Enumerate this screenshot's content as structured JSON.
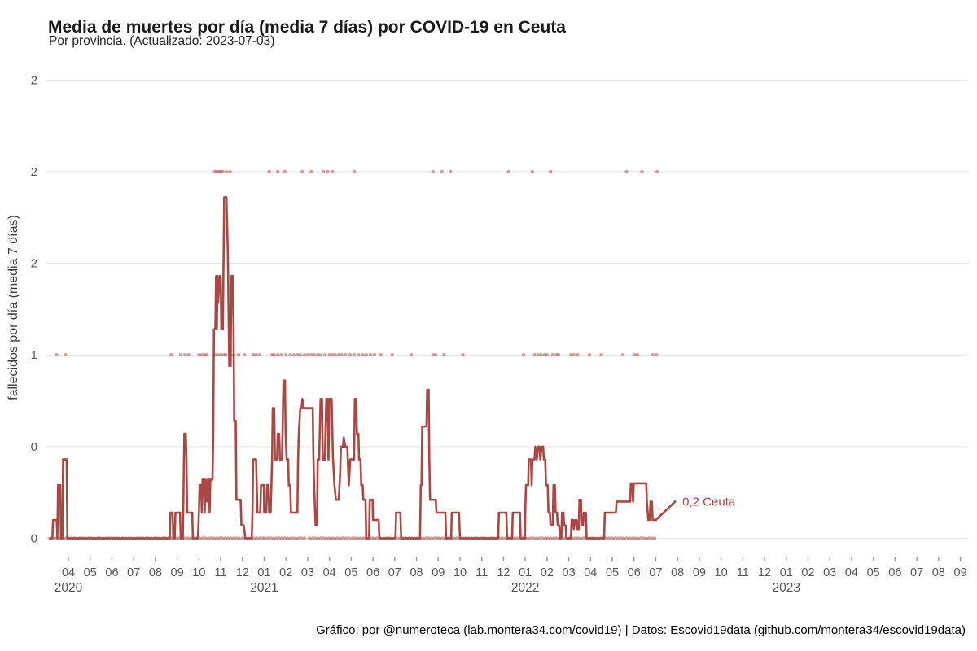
{
  "header": {
    "title": "Media de muertes por día (media 7 días) por COVID-19 en Ceuta",
    "subtitle": "Por provincia. (Actualizado: 2023-07-03)"
  },
  "footer": {
    "credit": "Gráfico: por @numeroteca (lab.montera34.com/covid19) | Datos: Escovid19data (github.com/montera34/escovid19data)"
  },
  "chart_data": {
    "type": "line",
    "title": "Media de muertes por día (media 7 días) por COVID-19 en Ceuta",
    "subtitle": "Por provincia. (Actualizado: 2023-07-03)",
    "ylabel": "fallecidos por día (media 7 días)",
    "xlabel": "",
    "grid_on": true,
    "line_color": "#a94743",
    "grid_color": "#e4e4e4",
    "tick_color": "#9a9a9a",
    "axis_text_color": "#565656",
    "ylim": [
      0,
      2.6
    ],
    "y_gridlines": {
      "values": [
        2.5,
        2.0,
        1.5,
        1.0,
        0.5,
        0
      ],
      "labels": [
        "2",
        "2",
        "2",
        "1",
        "0",
        "0"
      ]
    },
    "x_axis": {
      "first_tick_month": "2020-04",
      "month_tick_labels": [
        "04",
        "05",
        "06",
        "07",
        "08",
        "09",
        "10",
        "11",
        "12",
        "01",
        "02",
        "03",
        "04",
        "05",
        "06",
        "07",
        "08",
        "09",
        "10",
        "11",
        "12",
        "01",
        "02",
        "03",
        "04",
        "05",
        "06",
        "07",
        "08",
        "09",
        "10",
        "11",
        "12",
        "01",
        "02",
        "03",
        "04",
        "05",
        "06",
        "07",
        "08",
        "09"
      ],
      "year_labels": [
        {
          "label": "2020",
          "under_month": "2020-04"
        },
        {
          "label": "2021",
          "under_month": "2021-01"
        },
        {
          "label": "2022",
          "under_month": "2022-01"
        },
        {
          "label": "2023",
          "under_month": "2023-01"
        }
      ]
    },
    "series": {
      "name": "Ceuta",
      "end_label": "0,2 Ceuta",
      "points": [
        [
          "2020-03-05",
          0
        ],
        [
          "2020-03-09",
          0
        ],
        [
          "2020-03-10",
          0.1
        ],
        [
          "2020-03-15",
          0.1
        ],
        [
          "2020-03-16",
          0
        ],
        [
          "2020-03-17",
          0.29
        ],
        [
          "2020-03-20",
          0.29
        ],
        [
          "2020-03-21",
          0
        ],
        [
          "2020-03-23",
          0
        ],
        [
          "2020-03-24",
          0.43
        ],
        [
          "2020-03-29",
          0.43
        ],
        [
          "2020-03-30",
          0
        ],
        [
          "2020-08-21",
          0
        ],
        [
          "2020-08-22",
          0.14
        ],
        [
          "2020-08-25",
          0.14
        ],
        [
          "2020-08-26",
          0
        ],
        [
          "2020-08-28",
          0
        ],
        [
          "2020-08-29",
          0.14
        ],
        [
          "2020-09-05",
          0.14
        ],
        [
          "2020-09-06",
          0
        ],
        [
          "2020-09-09",
          0
        ],
        [
          "2020-09-10",
          0.29
        ],
        [
          "2020-09-11",
          0.57
        ],
        [
          "2020-09-13",
          0.57
        ],
        [
          "2020-09-14",
          0.43
        ],
        [
          "2020-09-15",
          0.14
        ],
        [
          "2020-09-22",
          0.14
        ],
        [
          "2020-09-23",
          0
        ],
        [
          "2020-09-30",
          0
        ],
        [
          "2020-10-01",
          0.14
        ],
        [
          "2020-10-02",
          0.29
        ],
        [
          "2020-10-04",
          0.29
        ],
        [
          "2020-10-05",
          0.14
        ],
        [
          "2020-10-06",
          0.32
        ],
        [
          "2020-10-08",
          0.32
        ],
        [
          "2020-10-09",
          0.14
        ],
        [
          "2020-10-10",
          0.32
        ],
        [
          "2020-10-12",
          0.2
        ],
        [
          "2020-10-13",
          0.32
        ],
        [
          "2020-10-15",
          0.32
        ],
        [
          "2020-10-16",
          0.14
        ],
        [
          "2020-10-17",
          0.32
        ],
        [
          "2020-10-20",
          0.32
        ],
        [
          "2020-10-21",
          0.57
        ],
        [
          "2020-10-22",
          1.14
        ],
        [
          "2020-10-24",
          1.14
        ],
        [
          "2020-10-25",
          1.43
        ],
        [
          "2020-10-26",
          1.14
        ],
        [
          "2020-10-27",
          1.43
        ],
        [
          "2020-10-28",
          1.29
        ],
        [
          "2020-10-30",
          1.43
        ],
        [
          "2020-11-01",
          1.43
        ],
        [
          "2020-11-02",
          1.14
        ],
        [
          "2020-11-04",
          1.14
        ],
        [
          "2020-11-06",
          1.86
        ],
        [
          "2020-11-09",
          1.86
        ],
        [
          "2020-11-10",
          1.71
        ],
        [
          "2020-11-11",
          1.57
        ],
        [
          "2020-11-13",
          0.94
        ],
        [
          "2020-11-15",
          0.94
        ],
        [
          "2020-11-16",
          1.43
        ],
        [
          "2020-11-18",
          1.43
        ],
        [
          "2020-11-19",
          1.14
        ],
        [
          "2020-11-20",
          0.64
        ],
        [
          "2020-11-22",
          0.64
        ],
        [
          "2020-11-23",
          0.21
        ],
        [
          "2020-11-29",
          0.21
        ],
        [
          "2020-11-30",
          0.07
        ],
        [
          "2020-12-03",
          0.07
        ],
        [
          "2020-12-05",
          0
        ],
        [
          "2020-12-14",
          0
        ],
        [
          "2020-12-15",
          0.14
        ],
        [
          "2020-12-16",
          0.43
        ],
        [
          "2020-12-20",
          0.43
        ],
        [
          "2020-12-21",
          0.29
        ],
        [
          "2020-12-22",
          0.14
        ],
        [
          "2020-12-26",
          0.14
        ],
        [
          "2020-12-27",
          0.29
        ],
        [
          "2020-12-31",
          0.29
        ],
        [
          "2021-01-01",
          0.14
        ],
        [
          "2021-01-04",
          0.14
        ],
        [
          "2021-01-05",
          0.29
        ],
        [
          "2021-01-07",
          0.29
        ],
        [
          "2021-01-08",
          0.14
        ],
        [
          "2021-01-10",
          0.14
        ],
        [
          "2021-01-12",
          0.43
        ],
        [
          "2021-01-13",
          0.71
        ],
        [
          "2021-01-15",
          0.71
        ],
        [
          "2021-01-16",
          0.43
        ],
        [
          "2021-01-19",
          0.43
        ],
        [
          "2021-01-20",
          0.57
        ],
        [
          "2021-01-22",
          0.57
        ],
        [
          "2021-01-23",
          0.43
        ],
        [
          "2021-01-26",
          0.43
        ],
        [
          "2021-01-28",
          0.86
        ],
        [
          "2021-01-30",
          0.86
        ],
        [
          "2021-01-31",
          0.57
        ],
        [
          "2021-02-02",
          0.43
        ],
        [
          "2021-02-04",
          0.43
        ],
        [
          "2021-02-05",
          0.29
        ],
        [
          "2021-02-07",
          0.29
        ],
        [
          "2021-02-08",
          0.14
        ],
        [
          "2021-02-11",
          0.14
        ],
        [
          "2021-02-17",
          0.14
        ],
        [
          "2021-02-18",
          0.43
        ],
        [
          "2021-02-19",
          0.57
        ],
        [
          "2021-02-21",
          0.71
        ],
        [
          "2021-02-23",
          0.71
        ],
        [
          "2021-02-24",
          0.76
        ],
        [
          "2021-02-26",
          0.71
        ],
        [
          "2021-03-08",
          0.71
        ],
        [
          "2021-03-09",
          0.43
        ],
        [
          "2021-03-10",
          0.29
        ],
        [
          "2021-03-12",
          0.07
        ],
        [
          "2021-03-14",
          0.07
        ],
        [
          "2021-03-15",
          0.43
        ],
        [
          "2021-03-17",
          0.43
        ],
        [
          "2021-03-19",
          0.76
        ],
        [
          "2021-03-21",
          0.76
        ],
        [
          "2021-03-22",
          0.43
        ],
        [
          "2021-03-25",
          0.43
        ],
        [
          "2021-03-27",
          0.76
        ],
        [
          "2021-03-29",
          0.76
        ],
        [
          "2021-03-30",
          0.43
        ],
        [
          "2021-04-01",
          0.76
        ],
        [
          "2021-04-04",
          0.76
        ],
        [
          "2021-04-06",
          0.43
        ],
        [
          "2021-04-08",
          0.29
        ],
        [
          "2021-04-10",
          0.21
        ],
        [
          "2021-04-14",
          0.21
        ],
        [
          "2021-04-16",
          0.36
        ],
        [
          "2021-04-17",
          0.5
        ],
        [
          "2021-04-20",
          0.5
        ],
        [
          "2021-04-21",
          0.55
        ],
        [
          "2021-04-23",
          0.5
        ],
        [
          "2021-04-26",
          0.5
        ],
        [
          "2021-04-28",
          0.29
        ],
        [
          "2021-04-30",
          0.43
        ],
        [
          "2021-05-05",
          0.43
        ],
        [
          "2021-05-06",
          0.76
        ],
        [
          "2021-05-08",
          0.76
        ],
        [
          "2021-05-09",
          0.57
        ],
        [
          "2021-05-11",
          0.57
        ],
        [
          "2021-05-12",
          0.43
        ],
        [
          "2021-05-14",
          0.43
        ],
        [
          "2021-05-15",
          0.29
        ],
        [
          "2021-05-17",
          0.29
        ],
        [
          "2021-05-18",
          0.21
        ],
        [
          "2021-05-21",
          0.21
        ],
        [
          "2021-05-22",
          0
        ],
        [
          "2021-05-26",
          0
        ],
        [
          "2021-05-27",
          0.21
        ],
        [
          "2021-05-31",
          0.21
        ],
        [
          "2021-06-01",
          0.1
        ],
        [
          "2021-06-09",
          0.1
        ],
        [
          "2021-06-10",
          0
        ],
        [
          "2021-07-02",
          0
        ],
        [
          "2021-07-03",
          0.14
        ],
        [
          "2021-07-09",
          0.14
        ],
        [
          "2021-07-10",
          0
        ],
        [
          "2021-08-06",
          0
        ],
        [
          "2021-08-07",
          0.29
        ],
        [
          "2021-08-08",
          0.29
        ],
        [
          "2021-08-09",
          0.61
        ],
        [
          "2021-08-15",
          0.61
        ],
        [
          "2021-08-16",
          0.81
        ],
        [
          "2021-08-18",
          0.81
        ],
        [
          "2021-08-19",
          0.43
        ],
        [
          "2021-08-20",
          0.21
        ],
        [
          "2021-08-28",
          0.21
        ],
        [
          "2021-08-29",
          0.14
        ],
        [
          "2021-09-11",
          0.14
        ],
        [
          "2021-09-12",
          0
        ],
        [
          "2021-09-19",
          0
        ],
        [
          "2021-09-20",
          0.14
        ],
        [
          "2021-09-30",
          0.14
        ],
        [
          "2021-10-01",
          0
        ],
        [
          "2021-11-24",
          0
        ],
        [
          "2021-11-25",
          0.14
        ],
        [
          "2021-12-05",
          0.14
        ],
        [
          "2021-12-06",
          0
        ],
        [
          "2021-12-13",
          0
        ],
        [
          "2021-12-14",
          0.14
        ],
        [
          "2021-12-24",
          0.14
        ],
        [
          "2021-12-25",
          0
        ],
        [
          "2021-12-31",
          0
        ],
        [
          "2022-01-01",
          0.14
        ],
        [
          "2022-01-02",
          0.29
        ],
        [
          "2022-01-05",
          0.29
        ],
        [
          "2022-01-06",
          0.43
        ],
        [
          "2022-01-09",
          0.43
        ],
        [
          "2022-01-10",
          0.29
        ],
        [
          "2022-01-11",
          0.43
        ],
        [
          "2022-01-14",
          0.43
        ],
        [
          "2022-01-15",
          0.5
        ],
        [
          "2022-01-17",
          0.43
        ],
        [
          "2022-01-19",
          0.5
        ],
        [
          "2022-01-21",
          0.5
        ],
        [
          "2022-01-22",
          0.43
        ],
        [
          "2022-01-24",
          0.5
        ],
        [
          "2022-01-26",
          0.5
        ],
        [
          "2022-01-27",
          0.43
        ],
        [
          "2022-01-29",
          0.43
        ],
        [
          "2022-01-30",
          0.29
        ],
        [
          "2022-02-02",
          0.29
        ],
        [
          "2022-02-03",
          0.14
        ],
        [
          "2022-02-05",
          0.14
        ],
        [
          "2022-02-06",
          0.07
        ],
        [
          "2022-02-09",
          0.07
        ],
        [
          "2022-02-10",
          0.29
        ],
        [
          "2022-02-12",
          0.29
        ],
        [
          "2022-02-13",
          0.14
        ],
        [
          "2022-02-15",
          0.14
        ],
        [
          "2022-02-16",
          0.07
        ],
        [
          "2022-02-18",
          0.07
        ],
        [
          "2022-02-19",
          0
        ],
        [
          "2022-02-21",
          0
        ],
        [
          "2022-02-22",
          0.14
        ],
        [
          "2022-02-24",
          0.14
        ],
        [
          "2022-02-25",
          0.07
        ],
        [
          "2022-02-27",
          0.07
        ],
        [
          "2022-02-28",
          0
        ],
        [
          "2022-03-04",
          0
        ],
        [
          "2022-03-05",
          0.1
        ],
        [
          "2022-03-07",
          0.1
        ],
        [
          "2022-03-08",
          0.05
        ],
        [
          "2022-03-10",
          0.1
        ],
        [
          "2022-03-12",
          0.1
        ],
        [
          "2022-03-13",
          0.05
        ],
        [
          "2022-03-15",
          0.05
        ],
        [
          "2022-03-16",
          0.21
        ],
        [
          "2022-03-18",
          0.21
        ],
        [
          "2022-03-19",
          0.07
        ],
        [
          "2022-03-21",
          0.07
        ],
        [
          "2022-03-22",
          0.14
        ],
        [
          "2022-03-25",
          0.14
        ],
        [
          "2022-03-26",
          0
        ],
        [
          "2022-04-20",
          0
        ],
        [
          "2022-04-21",
          0.14
        ],
        [
          "2022-05-06",
          0.14
        ],
        [
          "2022-05-07",
          0.2
        ],
        [
          "2022-05-26",
          0.2
        ],
        [
          "2022-05-27",
          0.3
        ],
        [
          "2022-05-29",
          0.3
        ],
        [
          "2022-05-30",
          0.2
        ],
        [
          "2022-05-31",
          0.3
        ],
        [
          "2022-06-18",
          0.3
        ],
        [
          "2022-06-19",
          0.2
        ],
        [
          "2022-06-21",
          0.1
        ],
        [
          "2022-06-23",
          0.1
        ],
        [
          "2022-06-24",
          0.2
        ],
        [
          "2022-06-26",
          0.2
        ],
        [
          "2022-06-27",
          0.1
        ],
        [
          "2022-07-01",
          0.1
        ],
        [
          "2022-07-28",
          0.2
        ]
      ]
    },
    "raw_daily_dots": {
      "value_2_dates": [
        "2020-10-23",
        "2020-10-26",
        "2020-10-29",
        "2020-11-01",
        "2020-11-04",
        "2020-11-09",
        "2020-11-14",
        "2021-01-08",
        "2021-01-20",
        "2021-01-30",
        "2021-02-24",
        "2021-03-06",
        "2021-03-23",
        "2021-03-29",
        "2021-04-05",
        "2021-05-05",
        "2021-08-24",
        "2021-09-06",
        "2021-09-18",
        "2021-12-08",
        "2022-01-11",
        "2022-02-06",
        "2022-05-21",
        "2022-06-12",
        "2022-07-03"
      ],
      "value_1_dates": [
        "2020-03-15",
        "2020-03-27",
        "2020-08-23",
        "2020-09-06",
        "2020-09-12",
        "2020-09-17",
        "2020-10-01",
        "2020-10-05",
        "2020-10-09",
        "2020-10-12",
        "2020-10-23",
        "2020-10-27",
        "2020-11-01",
        "2020-11-05",
        "2020-11-08",
        "2020-11-19",
        "2020-11-26",
        "2020-12-04",
        "2020-12-16",
        "2020-12-20",
        "2020-12-25",
        "2021-01-12",
        "2021-01-15",
        "2021-01-20",
        "2021-01-25",
        "2021-02-01",
        "2021-02-07",
        "2021-02-12",
        "2021-02-17",
        "2021-02-21",
        "2021-02-27",
        "2021-03-01",
        "2021-03-06",
        "2021-03-10",
        "2021-03-15",
        "2021-03-19",
        "2021-03-25",
        "2021-04-01",
        "2021-04-05",
        "2021-04-09",
        "2021-04-14",
        "2021-04-18",
        "2021-04-23",
        "2021-04-30",
        "2021-05-05",
        "2021-05-11",
        "2021-05-17",
        "2021-05-22",
        "2021-05-28",
        "2021-06-03",
        "2021-06-12",
        "2021-06-28",
        "2021-07-24",
        "2021-08-24",
        "2021-08-28",
        "2021-09-09",
        "2021-10-05",
        "2021-12-29",
        "2022-01-14",
        "2022-01-19",
        "2022-01-23",
        "2022-01-28",
        "2022-02-01",
        "2022-02-09",
        "2022-02-14",
        "2022-02-17",
        "2022-03-04",
        "2022-03-08",
        "2022-03-13",
        "2022-03-30",
        "2022-04-16",
        "2022-05-16",
        "2022-06-02",
        "2022-06-06",
        "2022-06-27",
        "2022-07-02"
      ],
      "value_0_range": {
        "start": "2020-03-08",
        "end": "2022-07-02",
        "every_days": 4
      }
    }
  }
}
